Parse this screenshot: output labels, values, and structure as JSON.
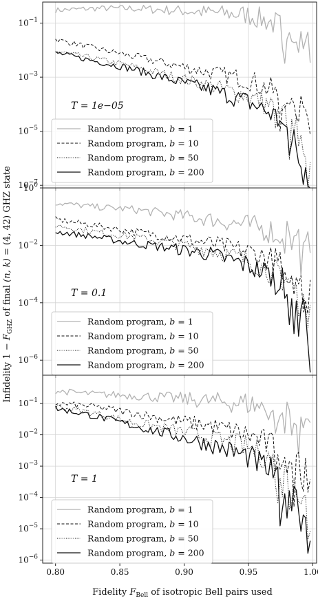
{
  "figure": {
    "ylabel_parts": [
      "Infidelity 1 − ",
      "F",
      "GHZ",
      " of final ",
      "(n, k)",
      " = (4, 42) GHZ state"
    ],
    "xlabel_parts": [
      "Fidelity ",
      "F",
      "Bell",
      " of isotropic Bell pairs used"
    ]
  },
  "chart_data": [
    {
      "type": "line",
      "annotation": "T = 1e−05",
      "yscale": "log",
      "ylim": [
        8e-08,
        0.6
      ],
      "xlim": [
        0.79,
        1.003
      ],
      "yticks": [
        {
          "v": 0.1,
          "base": "10",
          "exp": "−1"
        },
        {
          "v": 0.001,
          "base": "10",
          "exp": "−3"
        },
        {
          "v": 1e-05,
          "base": "10",
          "exp": "−5"
        },
        {
          "v": 1e-07,
          "base": "10",
          "exp": "−7"
        }
      ],
      "series": [
        {
          "name": "Random program, b = 1",
          "color": "#b3b3b3",
          "dash": "",
          "width": 1.3,
          "points": [
            [
              0.8,
              0.3
            ],
            [
              0.83,
              0.35
            ],
            [
              0.86,
              0.35
            ],
            [
              0.89,
              0.3
            ],
            [
              0.92,
              0.25
            ],
            [
              0.95,
              0.2
            ],
            [
              0.97,
              0.1
            ],
            [
              0.98,
              0.05
            ],
            [
              0.99,
              0.03
            ],
            [
              0.995,
              0.06
            ],
            [
              0.998,
              0.02
            ]
          ]
        },
        {
          "name": "Random program, b = 10",
          "color": "#111111",
          "dash": "4,2.5",
          "width": 1.0,
          "points": [
            [
              0.8,
              0.025
            ],
            [
              0.83,
              0.012
            ],
            [
              0.86,
              0.006
            ],
            [
              0.89,
              0.003
            ],
            [
              0.92,
              0.0015
            ],
            [
              0.95,
              0.0008
            ],
            [
              0.97,
              0.0003
            ],
            [
              0.98,
              0.0002
            ],
            [
              0.99,
              8e-05
            ],
            [
              0.995,
              2e-05
            ],
            [
              0.998,
              6e-06
            ]
          ]
        },
        {
          "name": "Random program, b = 50",
          "color": "#111111",
          "dash": "1,1.6",
          "width": 1.0,
          "points": [
            [
              0.8,
              0.009
            ],
            [
              0.83,
              0.005
            ],
            [
              0.86,
              0.0025
            ],
            [
              0.89,
              0.0011
            ],
            [
              0.92,
              0.0005
            ],
            [
              0.95,
              0.0002
            ],
            [
              0.97,
              8e-05
            ],
            [
              0.98,
              3e-05
            ],
            [
              0.99,
              1e-05
            ],
            [
              0.995,
              2e-06
            ],
            [
              0.998,
              8e-07
            ]
          ]
        },
        {
          "name": "Random program, b = 200",
          "color": "#111111",
          "dash": "",
          "width": 1.3,
          "points": [
            [
              0.8,
              0.008
            ],
            [
              0.83,
              0.004
            ],
            [
              0.86,
              0.002
            ],
            [
              0.89,
              0.0008
            ],
            [
              0.92,
              0.00035
            ],
            [
              0.95,
              0.00012
            ],
            [
              0.97,
              4e-05
            ],
            [
              0.98,
              1e-05
            ],
            [
              0.99,
              2e-06
            ],
            [
              0.995,
              5e-07
            ],
            [
              0.998,
              1.5e-07
            ]
          ]
        }
      ]
    },
    {
      "type": "line",
      "annotation": "T = 0.1",
      "yscale": "log",
      "ylim": [
        3e-07,
        1.0
      ],
      "xlim": [
        0.79,
        1.003
      ],
      "yticks": [
        {
          "v": 1,
          "base": "10",
          "exp": "0"
        },
        {
          "v": 0.01,
          "base": "10",
          "exp": "−2"
        },
        {
          "v": 0.0001,
          "base": "10",
          "exp": "−4"
        },
        {
          "v": 1e-06,
          "base": "10",
          "exp": "−6"
        }
      ],
      "series": [
        {
          "name": "Random program, b = 1",
          "color": "#b3b3b3",
          "dash": "",
          "width": 1.3,
          "points": [
            [
              0.8,
              0.3
            ],
            [
              0.83,
              0.22
            ],
            [
              0.86,
              0.18
            ],
            [
              0.89,
              0.12
            ],
            [
              0.92,
              0.08
            ],
            [
              0.95,
              0.05
            ],
            [
              0.97,
              0.03
            ],
            [
              0.98,
              0.025
            ],
            [
              0.99,
              0.02
            ],
            [
              0.995,
              0.02
            ],
            [
              0.998,
              0.015
            ]
          ]
        },
        {
          "name": "Random program, b = 10",
          "color": "#111111",
          "dash": "4,2.5",
          "width": 1.0,
          "points": [
            [
              0.8,
              0.08
            ],
            [
              0.83,
              0.05
            ],
            [
              0.86,
              0.03
            ],
            [
              0.89,
              0.02
            ],
            [
              0.92,
              0.012
            ],
            [
              0.95,
              0.006
            ],
            [
              0.97,
              0.003
            ],
            [
              0.98,
              0.0015
            ],
            [
              0.99,
              0.0008
            ],
            [
              0.995,
              0.0004
            ],
            [
              0.998,
              0.0002
            ]
          ]
        },
        {
          "name": "Random program, b = 50",
          "color": "#111111",
          "dash": "1,1.6",
          "width": 1.0,
          "points": [
            [
              0.8,
              0.05
            ],
            [
              0.83,
              0.03
            ],
            [
              0.86,
              0.02
            ],
            [
              0.89,
              0.012
            ],
            [
              0.92,
              0.007
            ],
            [
              0.95,
              0.003
            ],
            [
              0.97,
              0.0012
            ],
            [
              0.98,
              0.0006
            ],
            [
              0.99,
              0.0002
            ],
            [
              0.995,
              8e-05
            ],
            [
              0.998,
              3e-05
            ]
          ]
        },
        {
          "name": "Random program, b = 200",
          "color": "#111111",
          "dash": "",
          "width": 1.3,
          "points": [
            [
              0.8,
              0.03
            ],
            [
              0.83,
              0.02
            ],
            [
              0.86,
              0.012
            ],
            [
              0.89,
              0.008
            ],
            [
              0.92,
              0.005
            ],
            [
              0.95,
              0.002
            ],
            [
              0.97,
              0.0008
            ],
            [
              0.98,
              0.0004
            ],
            [
              0.99,
              0.0001
            ],
            [
              0.995,
              2e-05
            ],
            [
              0.998,
              1e-06
            ]
          ]
        }
      ]
    },
    {
      "type": "line",
      "annotation": "T = 1",
      "yscale": "log",
      "ylim": [
        8e-07,
        0.8
      ],
      "xlim": [
        0.79,
        1.003
      ],
      "yticks": [
        {
          "v": 0.1,
          "base": "10",
          "exp": "−1"
        },
        {
          "v": 0.01,
          "base": "10",
          "exp": "−2"
        },
        {
          "v": 0.001,
          "base": "10",
          "exp": "−3"
        },
        {
          "v": 0.0001,
          "base": "10",
          "exp": "−4"
        },
        {
          "v": 1e-05,
          "base": "10",
          "exp": "−5"
        },
        {
          "v": 1e-06,
          "base": "10",
          "exp": "−6"
        }
      ],
      "xticks": [
        {
          "v": 0.8,
          "label": "0.80"
        },
        {
          "v": 0.85,
          "label": "0.85"
        },
        {
          "v": 0.9,
          "label": "0.90"
        },
        {
          "v": 0.95,
          "label": "0.95"
        },
        {
          "v": 1.0,
          "label": "1.00"
        }
      ],
      "series": [
        {
          "name": "Random program, b = 1",
          "color": "#b3b3b3",
          "dash": "",
          "width": 1.3,
          "points": [
            [
              0.8,
              0.25
            ],
            [
              0.83,
              0.2
            ],
            [
              0.86,
              0.18
            ],
            [
              0.89,
              0.15
            ],
            [
              0.92,
              0.12
            ],
            [
              0.95,
              0.1
            ],
            [
              0.97,
              0.06
            ],
            [
              0.98,
              0.04
            ],
            [
              0.99,
              0.02
            ],
            [
              0.995,
              0.01
            ],
            [
              0.998,
              0.008
            ]
          ]
        },
        {
          "name": "Random program, b = 10",
          "color": "#111111",
          "dash": "4,2.5",
          "width": 1.0,
          "points": [
            [
              0.8,
              0.1
            ],
            [
              0.83,
              0.08
            ],
            [
              0.86,
              0.05
            ],
            [
              0.89,
              0.03
            ],
            [
              0.92,
              0.02
            ],
            [
              0.95,
              0.01
            ],
            [
              0.97,
              0.004
            ],
            [
              0.98,
              0.002
            ],
            [
              0.99,
              0.0008
            ],
            [
              0.995,
              0.0004
            ],
            [
              0.998,
              0.0003
            ]
          ]
        },
        {
          "name": "Random program, b = 50",
          "color": "#111111",
          "dash": "1,1.6",
          "width": 1.0,
          "points": [
            [
              0.8,
              0.08
            ],
            [
              0.83,
              0.05
            ],
            [
              0.86,
              0.025
            ],
            [
              0.89,
              0.015
            ],
            [
              0.92,
              0.008
            ],
            [
              0.95,
              0.004
            ],
            [
              0.97,
              0.0015
            ],
            [
              0.98,
              0.0006
            ],
            [
              0.99,
              0.0002
            ],
            [
              0.995,
              5e-05
            ],
            [
              0.998,
              2e-05
            ]
          ]
        },
        {
          "name": "Random program, b = 200",
          "color": "#111111",
          "dash": "",
          "width": 1.3,
          "points": [
            [
              0.8,
              0.07
            ],
            [
              0.83,
              0.04
            ],
            [
              0.86,
              0.02
            ],
            [
              0.89,
              0.01
            ],
            [
              0.92,
              0.005
            ],
            [
              0.95,
              0.002
            ],
            [
              0.97,
              0.0006
            ],
            [
              0.98,
              0.0002
            ],
            [
              0.99,
              5e-05
            ],
            [
              0.995,
              8e-06
            ],
            [
              0.998,
              1.5e-06
            ]
          ]
        }
      ]
    }
  ],
  "legend": {
    "items": [
      {
        "prefix": "Random program, ",
        "var": "b",
        "eq": " = 1"
      },
      {
        "prefix": "Random program, ",
        "var": "b",
        "eq": " = 10"
      },
      {
        "prefix": "Random program, ",
        "var": "b",
        "eq": " = 50"
      },
      {
        "prefix": "Random program, ",
        "var": "b",
        "eq": " = 200"
      }
    ]
  }
}
